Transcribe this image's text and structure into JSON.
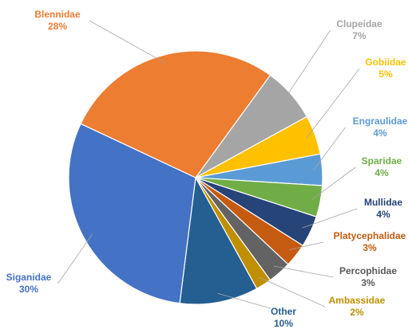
{
  "chart_data": {
    "type": "pie",
    "title": "",
    "legend": "none",
    "slices": [
      {
        "name": "Clupeidae",
        "value": 7,
        "value_label": "7%",
        "color": "#a5a5a5",
        "label_color": "#a5a5a5"
      },
      {
        "name": "Gobiidae",
        "value": 5,
        "value_label": "5%",
        "color": "#ffc000",
        "label_color": "#ffc000"
      },
      {
        "name": "Engraulidae",
        "value": 4,
        "value_label": "4%",
        "color": "#5b9bd5",
        "label_color": "#5b9bd5"
      },
      {
        "name": "Sparidae",
        "value": 4,
        "value_label": "4%",
        "color": "#70ad47",
        "label_color": "#70ad47"
      },
      {
        "name": "Mullidae",
        "value": 4,
        "value_label": "4%",
        "color": "#264478",
        "label_color": "#264478"
      },
      {
        "name": "Platycephalidae",
        "value": 3,
        "value_label": "3%",
        "color": "#c55a11",
        "label_color": "#c55a11"
      },
      {
        "name": "Percophidae",
        "value": 3,
        "value_label": "3%",
        "color": "#636363",
        "label_color": "#595959"
      },
      {
        "name": "Ambassidae",
        "value": 2,
        "value_label": "2%",
        "color": "#bf8f00",
        "label_color": "#bf8f00"
      },
      {
        "name": "Other",
        "value": 10,
        "value_label": "10%",
        "color": "#255e91",
        "label_color": "#255e91"
      },
      {
        "name": "Siganidae",
        "value": 30,
        "value_label": "30%",
        "color": "#4472c4",
        "label_color": "#4472c4"
      },
      {
        "name": "Blennidae",
        "value": 28,
        "value_label": "28%",
        "color": "#ed7d31",
        "label_color": "#ed7d31"
      }
    ]
  }
}
